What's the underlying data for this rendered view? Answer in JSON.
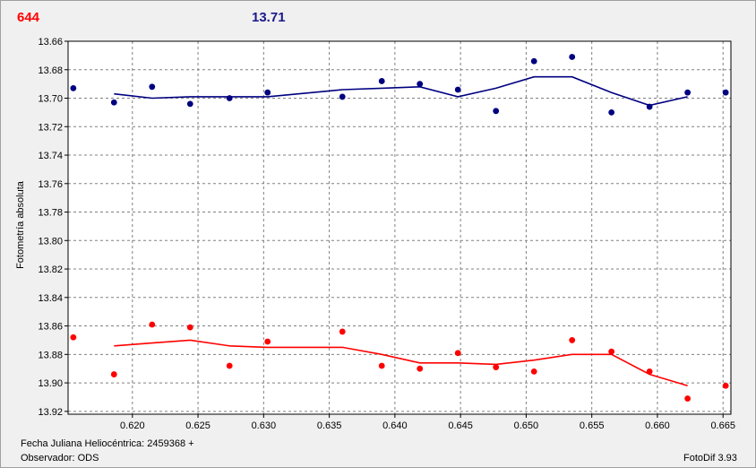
{
  "header": {
    "left_value": "644",
    "right_value": "13.71"
  },
  "footer": {
    "jd_label": "Fecha Juliana Heliocéntrica: 2459368 +",
    "observer_label": "Observador: ODS",
    "version_label": "FotoDif 3.93"
  },
  "colors": {
    "series_top": "#000080",
    "series_bottom": "#ff0000",
    "grid": "#808080"
  },
  "chart_data": {
    "type": "scatter",
    "ylabel": "Fotometría absoluta",
    "xlim": [
      0.6151,
      0.6656
    ],
    "ylim": [
      13.66,
      13.922
    ],
    "y_inverted": true,
    "grid": true,
    "xticks": [
      0.62,
      0.625,
      0.63,
      0.635,
      0.64,
      0.645,
      0.65,
      0.655,
      0.66,
      0.665
    ],
    "xtick_labels": [
      "0.620",
      "0.625",
      "0.630",
      "0.635",
      "0.640",
      "0.645",
      "0.650",
      "0.655",
      "0.660",
      "0.665"
    ],
    "yticks": [
      13.66,
      13.68,
      13.7,
      13.72,
      13.74,
      13.76,
      13.78,
      13.8,
      13.82,
      13.84,
      13.86,
      13.88,
      13.9,
      13.92
    ],
    "ytick_labels": [
      "13.66",
      "13.68",
      "13.70",
      "13.72",
      "13.74",
      "13.76",
      "13.78",
      "13.80",
      "13.82",
      "13.84",
      "13.86",
      "13.88",
      "13.90",
      "13.92"
    ],
    "series": [
      {
        "color": "#000080",
        "points": [
          [
            0.6155,
            13.693
          ],
          [
            0.6186,
            13.703
          ],
          [
            0.6215,
            13.692
          ],
          [
            0.6244,
            13.704
          ],
          [
            0.6274,
            13.7
          ],
          [
            0.6303,
            13.696
          ],
          [
            0.636,
            13.699
          ],
          [
            0.639,
            13.688
          ],
          [
            0.6419,
            13.69
          ],
          [
            0.6448,
            13.694
          ],
          [
            0.6477,
            13.709
          ],
          [
            0.6506,
            13.674
          ],
          [
            0.6535,
            13.671
          ],
          [
            0.6565,
            13.71
          ],
          [
            0.6594,
            13.706
          ],
          [
            0.6623,
            13.696
          ],
          [
            0.6652,
            13.696
          ]
        ],
        "trend": [
          [
            0.6186,
            13.697
          ],
          [
            0.6215,
            13.7
          ],
          [
            0.6244,
            13.699
          ],
          [
            0.6274,
            13.699
          ],
          [
            0.6303,
            13.699
          ],
          [
            0.636,
            13.694
          ],
          [
            0.639,
            13.693
          ],
          [
            0.6419,
            13.692
          ],
          [
            0.6448,
            13.699
          ],
          [
            0.6477,
            13.693
          ],
          [
            0.6506,
            13.685
          ],
          [
            0.6535,
            13.685
          ],
          [
            0.6565,
            13.696
          ],
          [
            0.6594,
            13.705
          ],
          [
            0.6623,
            13.699
          ]
        ]
      },
      {
        "color": "#ff0000",
        "points": [
          [
            0.6155,
            13.868
          ],
          [
            0.6186,
            13.894
          ],
          [
            0.6215,
            13.859
          ],
          [
            0.6244,
            13.861
          ],
          [
            0.6274,
            13.888
          ],
          [
            0.6303,
            13.871
          ],
          [
            0.636,
            13.864
          ],
          [
            0.639,
            13.888
          ],
          [
            0.6419,
            13.89
          ],
          [
            0.6448,
            13.879
          ],
          [
            0.6477,
            13.889
          ],
          [
            0.6506,
            13.892
          ],
          [
            0.6535,
            13.87
          ],
          [
            0.6565,
            13.878
          ],
          [
            0.6594,
            13.892
          ],
          [
            0.6623,
            13.911
          ],
          [
            0.6652,
            13.902
          ]
        ],
        "trend": [
          [
            0.6186,
            13.874
          ],
          [
            0.6215,
            13.872
          ],
          [
            0.6244,
            13.87
          ],
          [
            0.6274,
            13.874
          ],
          [
            0.6303,
            13.875
          ],
          [
            0.636,
            13.875
          ],
          [
            0.639,
            13.88
          ],
          [
            0.6419,
            13.886
          ],
          [
            0.6448,
            13.886
          ],
          [
            0.6477,
            13.887
          ],
          [
            0.6506,
            13.884
          ],
          [
            0.6535,
            13.88
          ],
          [
            0.6565,
            13.88
          ],
          [
            0.6594,
            13.894
          ],
          [
            0.6623,
            13.902
          ]
        ]
      }
    ]
  }
}
